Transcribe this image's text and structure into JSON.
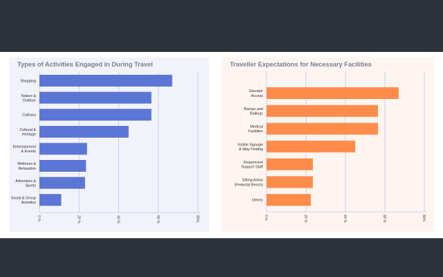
{
  "chart_data": [
    {
      "type": "bar",
      "orientation": "horizontal",
      "title": "Types of Activities Engaged in During Travel",
      "categories": [
        [
          "Shopping"
        ],
        [
          "Nature &",
          "Outdoor"
        ],
        [
          "Culinary"
        ],
        [
          "Cultural &",
          "Heritage"
        ],
        [
          "Entertainment",
          "& Events"
        ],
        [
          "Wellness &",
          "Relaxation"
        ],
        [
          "Adventure &",
          "Sports"
        ],
        [
          "Social & Group",
          "Activities"
        ]
      ],
      "values": [
        67,
        56.5,
        56.5,
        45,
        24,
        23.5,
        23,
        11
      ],
      "xlim": [
        0,
        80
      ],
      "xticks": [
        0,
        20,
        40,
        60,
        80
      ],
      "xtick_labels": [
        "0 %",
        "20 %",
        "40 %",
        "60 %",
        "80%"
      ],
      "xlabel": "",
      "ylabel": "",
      "grid": true,
      "bar_color": "#5b76d4",
      "background": "#f2f3fa"
    },
    {
      "type": "bar",
      "orientation": "horizontal",
      "title": "Traveller Expectations for Necessary Facilities",
      "categories": [
        [
          "Elevator",
          "Access"
        ],
        [
          "Ramps and",
          "Railings"
        ],
        [
          "Medical",
          "Facilities"
        ],
        [
          "Visible Signage",
          "& Way Finding"
        ],
        [
          "Responsive",
          "Support Staff"
        ],
        [
          "Sitting Areas",
          "(Pedestal Bench)"
        ],
        [
          "Others"
        ]
      ],
      "values": [
        67,
        56.5,
        56.5,
        45,
        23.5,
        23.5,
        22.5
      ],
      "xlim": [
        0,
        80
      ],
      "xticks": [
        0,
        20,
        40,
        60,
        80
      ],
      "xtick_labels": [
        "0 %",
        "20 %",
        "40 %",
        "60 %",
        "80%"
      ],
      "xlabel": "",
      "ylabel": "",
      "grid": true,
      "bar_color": "#ff8c4a",
      "background": "#fff5f0"
    }
  ],
  "colors": {
    "frame": "#2d333b",
    "gridline": "#c9cfec",
    "title_text": "#7c808b"
  }
}
